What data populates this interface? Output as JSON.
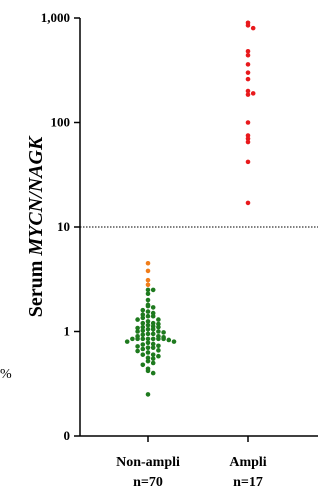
{
  "chart_data": {
    "type": "scatter",
    "ylabel_prefix": "Serum ",
    "ylabel_italic": "MYCN/NAGK",
    "yscale": "log",
    "ylim": [
      0.1,
      1000
    ],
    "yticks": [
      {
        "value": 1000,
        "label": "1,000"
      },
      {
        "value": 100,
        "label": "100"
      },
      {
        "value": 10,
        "label": "10"
      },
      {
        "value": 1,
        "label": "1"
      },
      {
        "value": 0.1,
        "label": "0"
      }
    ],
    "threshold": 10,
    "categories": [
      {
        "name": "Non-ampli",
        "n_label": "n=70"
      },
      {
        "name": "Ampli",
        "n_label": "n=17"
      }
    ],
    "series": [
      {
        "category": "Non-ampli",
        "color": "#1e7a1e",
        "values": [
          2.5,
          2.5,
          2.3,
          2.0,
          1.8,
          1.75,
          1.7,
          1.6,
          1.55,
          1.5,
          1.45,
          1.4,
          1.4,
          1.35,
          1.3,
          1.3,
          1.25,
          1.2,
          1.2,
          1.18,
          1.15,
          1.12,
          1.1,
          1.1,
          1.08,
          1.05,
          1.05,
          1.02,
          1.0,
          1.0,
          0.98,
          0.95,
          0.95,
          0.93,
          0.9,
          0.9,
          0.88,
          0.85,
          0.85,
          0.85,
          0.85,
          0.85,
          0.85,
          0.85,
          0.83,
          0.8,
          0.8,
          0.78,
          0.76,
          0.75,
          0.73,
          0.72,
          0.7,
          0.7,
          0.68,
          0.66,
          0.65,
          0.63,
          0.6,
          0.6,
          0.58,
          0.56,
          0.55,
          0.52,
          0.5,
          0.48,
          0.44,
          0.42,
          0.4,
          0.25
        ]
      },
      {
        "category": "Non-ampli",
        "color": "#f07d1a",
        "values": [
          4.5,
          3.8,
          3.1,
          2.8
        ]
      },
      {
        "category": "Ampli",
        "color": "#e8191c",
        "values": [
          900,
          850,
          800,
          480,
          440,
          360,
          300,
          260,
          200,
          190,
          185,
          100,
          75,
          70,
          65,
          42,
          17
        ]
      }
    ]
  },
  "page": {
    "left_edge_glyph": "%"
  }
}
